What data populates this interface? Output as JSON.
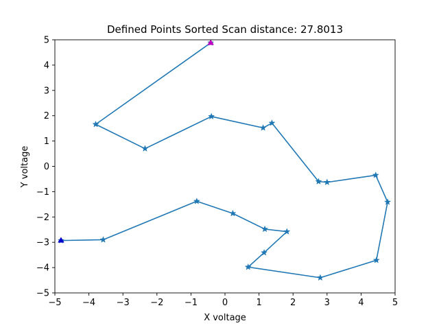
{
  "chart_data": {
    "type": "line",
    "title": "Defined Points Sorted Scan distance: 27.8013",
    "xlabel": "X voltage",
    "ylabel": "Y voltage",
    "xlim": [
      -5,
      5
    ],
    "ylim": [
      -5,
      5
    ],
    "xticks": [
      -5,
      -4,
      -3,
      -2,
      -1,
      0,
      1,
      2,
      3,
      4,
      5
    ],
    "yticks": [
      -5,
      -4,
      -3,
      -2,
      -1,
      0,
      1,
      2,
      3,
      4,
      5
    ],
    "grid": false,
    "series": [
      {
        "color": "#1f77b4",
        "marker": "star",
        "x": [
          -0.42,
          -3.8,
          -2.35,
          -0.4,
          1.12,
          1.38,
          2.75,
          3.0,
          4.43,
          4.78,
          4.45,
          2.8,
          0.68,
          1.15,
          1.82,
          1.17,
          0.23,
          -0.83,
          -3.58,
          -4.82
        ],
        "y": [
          4.88,
          1.66,
          0.7,
          1.97,
          1.52,
          1.71,
          -0.6,
          -0.63,
          -0.35,
          -1.41,
          -3.71,
          -4.4,
          -3.98,
          -3.41,
          -2.58,
          -2.48,
          -1.86,
          -1.38,
          -2.9,
          -2.93
        ]
      }
    ],
    "start_point": {
      "x": -0.42,
      "y": 4.88,
      "color": "#c000c0",
      "marker": "triangle"
    },
    "end_point": {
      "x": -4.82,
      "y": -2.93,
      "color": "#0000cc",
      "marker": "triangle"
    }
  }
}
